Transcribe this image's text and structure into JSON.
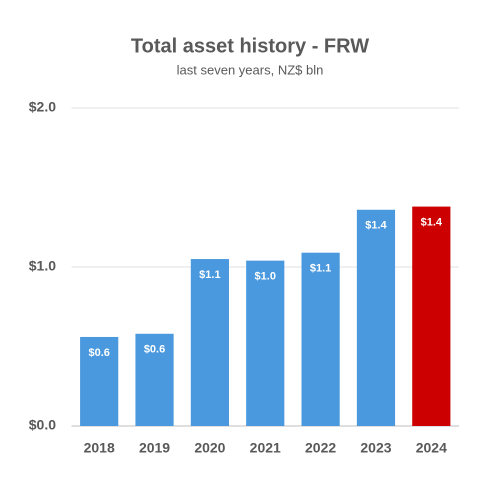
{
  "chart_data": {
    "type": "bar",
    "title": "Total asset history - FRW",
    "subtitle": "last seven years, NZ$ bln",
    "categories": [
      "2018",
      "2019",
      "2020",
      "2021",
      "2022",
      "2023",
      "2024"
    ],
    "values": [
      0.56,
      0.58,
      1.05,
      1.04,
      1.09,
      1.36,
      1.38
    ],
    "value_labels": [
      "$0.6",
      "$0.6",
      "$1.1",
      "$1.0",
      "$1.1",
      "$1.4",
      "$1.4"
    ],
    "colors": [
      "#4a98dd",
      "#4a98dd",
      "#4a98dd",
      "#4a98dd",
      "#4a98dd",
      "#4a98dd",
      "#cc0000"
    ],
    "ylim": [
      0,
      2
    ],
    "yticks": [
      {
        "value": 0,
        "label": "$0.0"
      },
      {
        "value": 1,
        "label": "$1.0"
      },
      {
        "value": 2,
        "label": "$2.0"
      }
    ],
    "grid": true
  }
}
